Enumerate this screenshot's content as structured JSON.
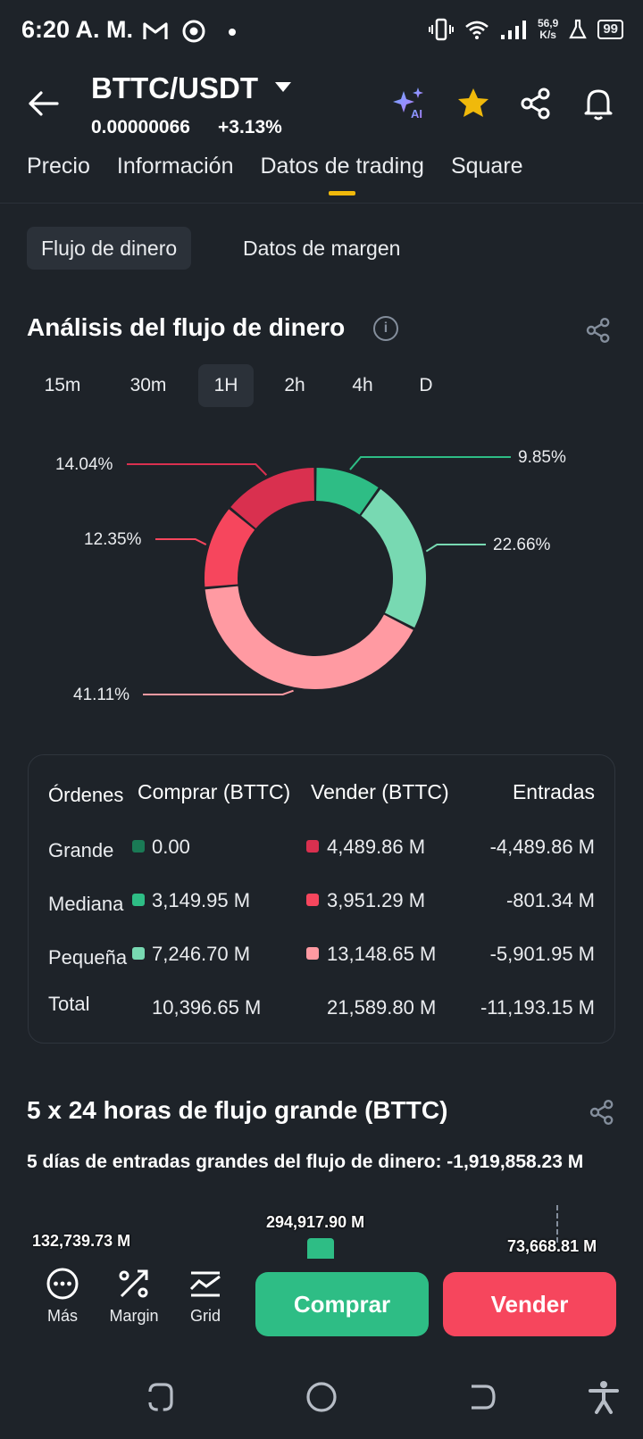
{
  "status_bar": {
    "time": "6:20 A. M.",
    "net_speed_value": "56,9",
    "net_speed_unit": "K/s",
    "battery": "99"
  },
  "header": {
    "pair": "BTTC/USDT",
    "price": "0.00000066",
    "change": "+3.13%"
  },
  "tabs": [
    "Precio",
    "Información",
    "Datos de trading",
    "Square"
  ],
  "active_tab": "Datos de trading",
  "subtabs": [
    "Flujo de dinero",
    "Datos de margen"
  ],
  "money_flow": {
    "title": "Análisis del flujo de dinero",
    "intervals": [
      "15m",
      "30m",
      "1H",
      "2h",
      "4h",
      "D"
    ],
    "active_interval": "1H"
  },
  "chart_data": {
    "type": "pie",
    "slices": [
      {
        "label": "9.85%",
        "value": 9.85,
        "color": "#2ebd85"
      },
      {
        "label": "22.66%",
        "value": 22.66,
        "color": "#78d9b2"
      },
      {
        "label": "41.11%",
        "value": 41.11,
        "color": "#ff9aa2"
      },
      {
        "label": "12.35%",
        "value": 12.35,
        "color": "#f6465d"
      },
      {
        "label": "14.04%",
        "value": 14.04,
        "color": "#d9304f"
      }
    ]
  },
  "orders_table": {
    "headers": [
      "Órdenes",
      "Comprar (BTTC)",
      "Vender (BTTC)",
      "Entradas"
    ],
    "rows": [
      {
        "label": "Grande",
        "buy": "0.00",
        "sell": "4,489.86 M",
        "inflow": "-4,489.86 M"
      },
      {
        "label": "Mediana",
        "buy": "3,149.95 M",
        "sell": "3,951.29 M",
        "inflow": "-801.34 M"
      },
      {
        "label": "Pequeña",
        "buy": "7,246.70 M",
        "sell": "13,148.65 M",
        "inflow": "-5,901.95 M"
      },
      {
        "label": "Total",
        "buy": "10,396.65 M",
        "sell": "21,589.80 M",
        "inflow": "-11,193.15 M"
      }
    ],
    "colors": {
      "buy_large": "#1a7a55",
      "buy_medium": "#2ebd85",
      "buy_small": "#78d9b2",
      "sell_large": "#d9304f",
      "sell_medium": "#f6465d",
      "sell_small": "#ff9aa2"
    }
  },
  "large_flow": {
    "title": "5 x 24 horas de flujo grande (BTTC)",
    "summary": "5 días de entradas grandes del flujo de dinero: -1,919,858.23 M",
    "bar_labels": [
      "132,739.73 M",
      "294,917.90 M",
      "73,668.81 M"
    ]
  },
  "actions": {
    "more": "Más",
    "margin": "Margin",
    "grid": "Grid",
    "buy": "Comprar",
    "sell": "Vender"
  }
}
